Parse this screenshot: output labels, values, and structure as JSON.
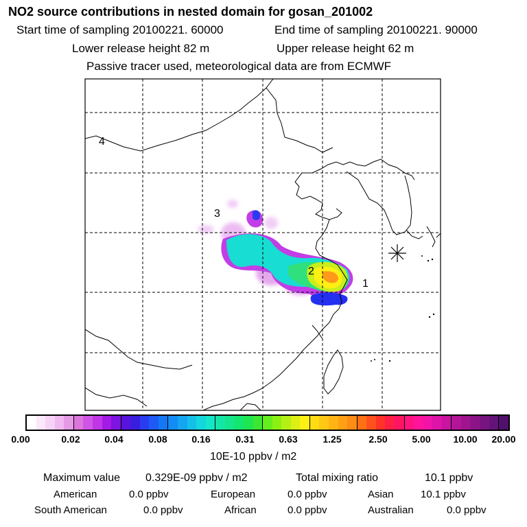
{
  "header": {
    "title": "NO2 source contributions in nested domain for gosan_201002",
    "start_label": "Start time of sampling 20100221. 60000",
    "end_label": "End time of sampling 20100221. 90000",
    "lower_release": "Lower release height   82 m",
    "upper_release": "Upper release height   62 m",
    "note": "Passive tracer used, meteorological data are from ECMWF"
  },
  "map": {
    "region_labels": [
      "1",
      "2",
      "3",
      "4"
    ],
    "receptor_marker": "receptor-star"
  },
  "legend": {
    "unit": "10E-10 ppbv / m2",
    "ticks": [
      "0.00",
      "0.02",
      "0.04",
      "0.08",
      "0.16",
      "0.31",
      "0.63",
      "1.25",
      "2.50",
      "5.00",
      "10.00",
      "20.00"
    ],
    "colors": [
      "#ffffff",
      "#fbe8fb",
      "#f6d3f6",
      "#efb9ef",
      "#e59ae5",
      "#db77db",
      "#d055e6",
      "#c036e6",
      "#a41ae6",
      "#7d14e0",
      "#5814dc",
      "#3a1ee0",
      "#2a3cf0",
      "#1e5af5",
      "#1478f5",
      "#148cf5",
      "#14a6f0",
      "#14c0e8",
      "#14d7dc",
      "#14e6c8",
      "#14e6a8",
      "#14e68c",
      "#14e670",
      "#1ee650",
      "#3ce632",
      "#64ee1e",
      "#8cf014",
      "#b4f014",
      "#dcf014",
      "#fff014",
      "#ffdc14",
      "#ffc814",
      "#ffb414",
      "#ffa014",
      "#ff8c14",
      "#ff7014",
      "#ff501e",
      "#ff3228",
      "#ff1e46",
      "#ff1464",
      "#ff1482",
      "#ff149a",
      "#f014a8",
      "#dc14a8",
      "#c814a0",
      "#b41498",
      "#a01490",
      "#8c1488",
      "#781480",
      "#641478",
      "#50106c"
    ]
  },
  "stats": {
    "max_label": "Maximum value",
    "max_value": "0.329E-09 ppbv / m2",
    "total_label": "Total mixing ratio",
    "total_value": "10.1 ppbv",
    "sources": [
      {
        "name": "American",
        "value": "0.0 ppbv"
      },
      {
        "name": "European",
        "value": "0.0 ppbv"
      },
      {
        "name": "Asian",
        "value": "10.1 ppbv"
      },
      {
        "name": "South American",
        "value": "0.0 ppbv"
      },
      {
        "name": "African",
        "value": "0.0 ppbv"
      },
      {
        "name": "Australian",
        "value": "0.0 ppbv"
      }
    ]
  }
}
